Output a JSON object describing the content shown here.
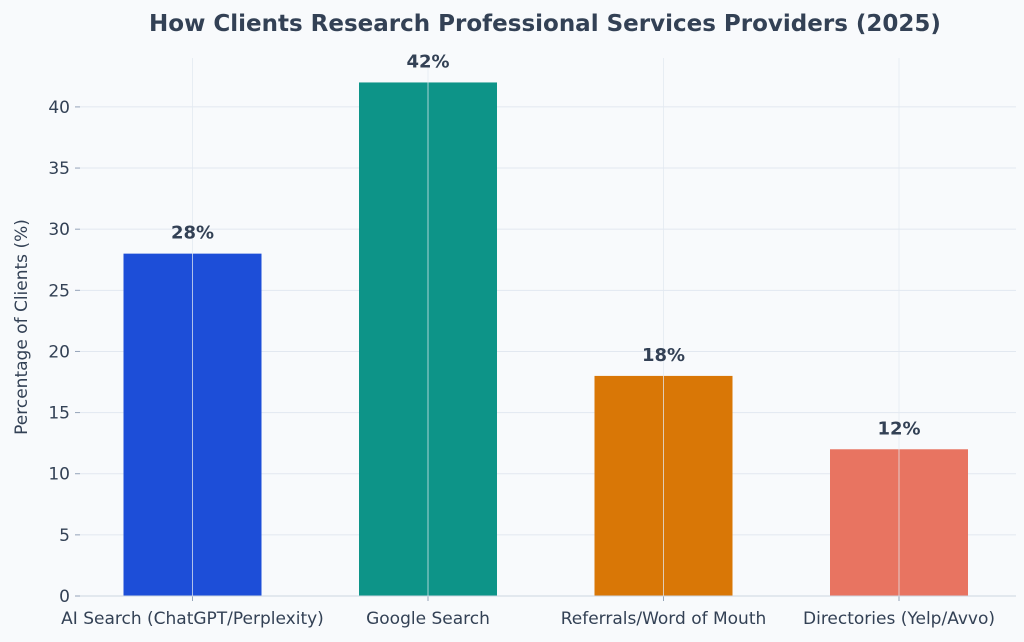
{
  "chart_data": {
    "type": "bar",
    "title": "How Clients Research Professional Services Providers (2025)",
    "xlabel": "",
    "ylabel": "Percentage of Clients (%)",
    "categories": [
      "AI Search (ChatGPT/Perplexity)",
      "Google Search",
      "Referrals/Word of Mouth",
      "Directories (Yelp/Avvo)"
    ],
    "values": [
      28,
      42,
      18,
      12
    ],
    "data_labels": [
      "28%",
      "42%",
      "18%",
      "12%"
    ],
    "colors": [
      "#1d4ed8",
      "#0d9488",
      "#d97706",
      "#e87461"
    ],
    "ylim": [
      0,
      44
    ],
    "yticks": [
      0,
      5,
      10,
      15,
      20,
      25,
      30,
      35,
      40
    ],
    "grid": true,
    "legend": "none"
  }
}
